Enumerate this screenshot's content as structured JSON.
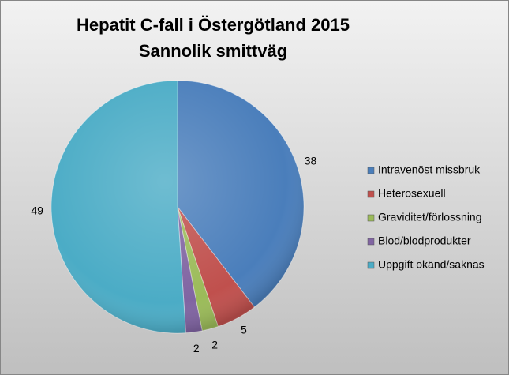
{
  "chart_data": {
    "type": "pie",
    "title": "Hepatit C-fall  i Östergötland 2015",
    "subtitle": "Sannolik smittväg",
    "categories": [
      "Intravenöst missbruk",
      "Heterosexuell",
      "Graviditet/förlossning",
      "Blod/blodprodukter",
      "Uppgift okänd/saknas"
    ],
    "values": [
      38,
      5,
      2,
      2,
      49
    ],
    "colors": [
      "#4a7ebb",
      "#c0504d",
      "#9bbb59",
      "#8064a2",
      "#4bacc6"
    ],
    "legend": "right"
  }
}
